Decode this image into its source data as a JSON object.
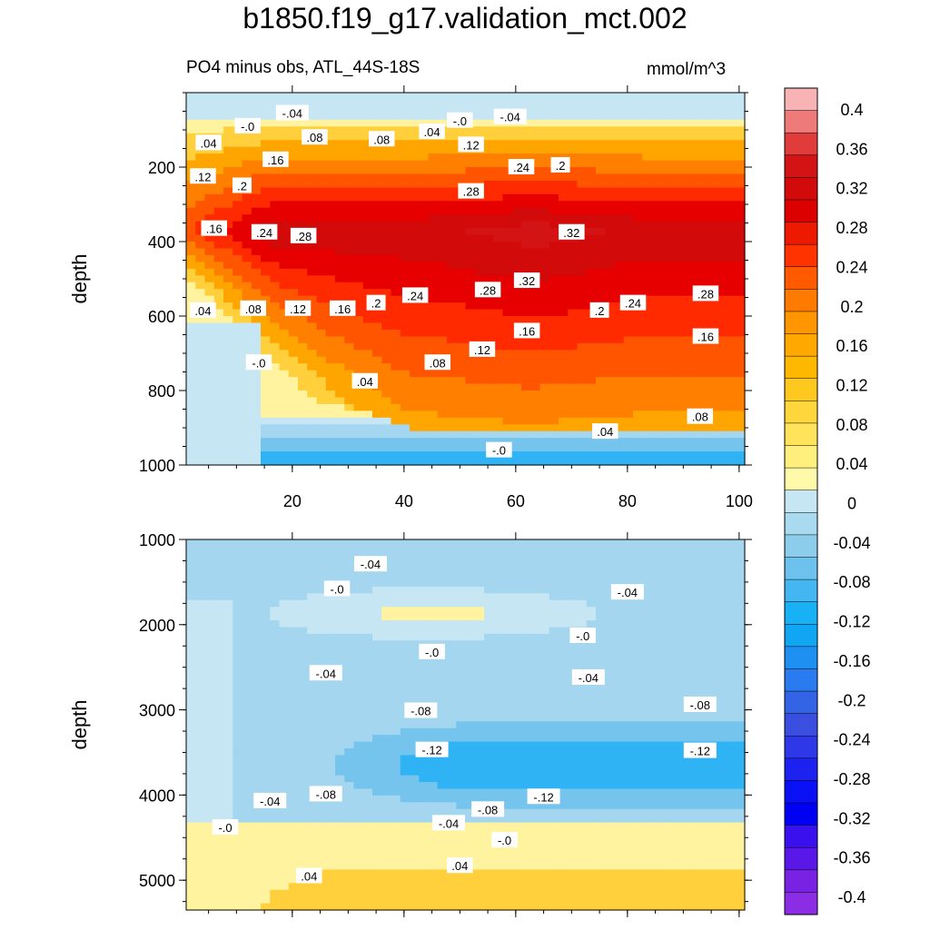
{
  "chart_data": {
    "type": "heatmap",
    "title": "b1850.f19_g17.validation_mct.002",
    "subtitle": "PO4 minus obs, ATL_44S-18S",
    "units": "mmol/m^3",
    "xlim": [
      1,
      101
    ],
    "x_ticks": [
      20,
      40,
      60,
      80,
      100
    ],
    "panels": [
      {
        "name": "upper",
        "ylabel": "depth",
        "ylim": [
          0,
          1000
        ],
        "y_ticks": [
          200,
          400,
          600,
          800,
          1000
        ],
        "contour_labels": [
          {
            "text": "-.04",
            "x": 20,
            "y": 55
          },
          {
            "text": "-.0",
            "x": 12,
            "y": 90
          },
          {
            "text": "-.0",
            "x": 50,
            "y": 75
          },
          {
            "text": "-.04",
            "x": 59,
            "y": 65
          },
          {
            "text": ".04",
            "x": 5,
            "y": 135
          },
          {
            "text": ".08",
            "x": 24,
            "y": 120
          },
          {
            "text": ".08",
            "x": 36,
            "y": 125
          },
          {
            "text": ".04",
            "x": 45,
            "y": 105
          },
          {
            "text": ".12",
            "x": 52,
            "y": 140
          },
          {
            "text": ".12",
            "x": 4,
            "y": 225
          },
          {
            "text": ".16",
            "x": 17,
            "y": 180
          },
          {
            "text": ".2",
            "x": 11,
            "y": 250
          },
          {
            "text": ".24",
            "x": 61,
            "y": 200
          },
          {
            "text": ".2",
            "x": 68,
            "y": 195
          },
          {
            "text": ".28",
            "x": 52,
            "y": 265
          },
          {
            "text": ".32",
            "x": 70,
            "y": 375
          },
          {
            "text": ".16",
            "x": 6,
            "y": 365
          },
          {
            "text": ".24",
            "x": 15,
            "y": 375
          },
          {
            "text": ".28",
            "x": 22,
            "y": 385
          },
          {
            "text": ".32",
            "x": 62,
            "y": 505
          },
          {
            "text": ".28",
            "x": 55,
            "y": 530
          },
          {
            "text": ".24",
            "x": 42,
            "y": 545
          },
          {
            "text": ".2",
            "x": 35,
            "y": 565
          },
          {
            "text": ".16",
            "x": 29,
            "y": 580
          },
          {
            "text": ".12",
            "x": 21,
            "y": 580
          },
          {
            "text": ".08",
            "x": 13,
            "y": 580
          },
          {
            "text": ".04",
            "x": 4,
            "y": 585
          },
          {
            "text": ".2",
            "x": 75,
            "y": 585
          },
          {
            "text": ".24",
            "x": 81,
            "y": 565
          },
          {
            "text": ".28",
            "x": 94,
            "y": 540
          },
          {
            "text": ".16",
            "x": 62,
            "y": 640
          },
          {
            "text": ".12",
            "x": 54,
            "y": 690
          },
          {
            "text": ".16",
            "x": 94,
            "y": 655
          },
          {
            "text": ".08",
            "x": 46,
            "y": 725
          },
          {
            "text": "-.0",
            "x": 14,
            "y": 725
          },
          {
            "text": ".04",
            "x": 33,
            "y": 775
          },
          {
            "text": ".08",
            "x": 93,
            "y": 870
          },
          {
            "text": ".04",
            "x": 76,
            "y": 910
          },
          {
            "text": "-.0",
            "x": 57,
            "y": 960
          }
        ]
      },
      {
        "name": "lower",
        "ylabel": "depth",
        "ylim": [
          1000,
          5350
        ],
        "y_ticks": [
          1000,
          2000,
          3000,
          4000,
          5000
        ],
        "contour_labels": [
          {
            "text": "-.04",
            "x": 34,
            "y": 1290
          },
          {
            "text": "-.0",
            "x": 28,
            "y": 1580
          },
          {
            "text": "-.04",
            "x": 80,
            "y": 1620
          },
          {
            "text": "-.0",
            "x": 72,
            "y": 2130
          },
          {
            "text": "-.0",
            "x": 45,
            "y": 2320
          },
          {
            "text": "-.04",
            "x": 26,
            "y": 2570
          },
          {
            "text": "-.04",
            "x": 73,
            "y": 2620
          },
          {
            "text": "-.08",
            "x": 93,
            "y": 2940
          },
          {
            "text": "-.08",
            "x": 43,
            "y": 3010
          },
          {
            "text": "-.12",
            "x": 45,
            "y": 3470
          },
          {
            "text": "-.12",
            "x": 93,
            "y": 3480
          },
          {
            "text": "-.12",
            "x": 65,
            "y": 4020
          },
          {
            "text": "-.04",
            "x": 16,
            "y": 4070
          },
          {
            "text": "-.08",
            "x": 26,
            "y": 3990
          },
          {
            "text": "-.08",
            "x": 55,
            "y": 4170
          },
          {
            "text": "-.04",
            "x": 48,
            "y": 4330
          },
          {
            "text": "-.0",
            "x": 8,
            "y": 4380
          },
          {
            "text": "-.0",
            "x": 58,
            "y": 4530
          },
          {
            "text": ".04",
            "x": 50,
            "y": 4830
          },
          {
            "text": ".04",
            "x": 23,
            "y": 4950
          }
        ]
      }
    ],
    "colorbar": {
      "labels": [
        "0.4",
        "0.36",
        "0.32",
        "0.28",
        "0.24",
        "0.2",
        "0.16",
        "0.12",
        "0.08",
        "0.04",
        "0",
        "-0.04",
        "-0.08",
        "-0.12",
        "-0.16",
        "-0.2",
        "-0.24",
        "-0.28",
        "-0.32",
        "-0.36",
        "-0.4"
      ],
      "colors": [
        "#f8b4b4",
        "#ef7a7a",
        "#e03c3c",
        "#d41414",
        "#d20a0a",
        "#dd0000",
        "#ee1a00",
        "#ff3300",
        "#ff5a00",
        "#ff7a00",
        "#ff9600",
        "#ffa800",
        "#ffb800",
        "#ffc81e",
        "#ffd63c",
        "#ffe35a",
        "#fff07d",
        "#fff9aa",
        "#c6e6f4",
        "#a9daf0",
        "#8dcdec",
        "#6dc1ed",
        "#44b7f2",
        "#19b1f6",
        "#10a6f4",
        "#1d90f2",
        "#2a7bf0",
        "#3364e6",
        "#3a4ee0",
        "#2f38e8",
        "#1e22f0",
        "#0a10f4",
        "#0000f2",
        "#3a10ee",
        "#5a18e8",
        "#7a22e4",
        "#8c2de6"
      ]
    }
  }
}
